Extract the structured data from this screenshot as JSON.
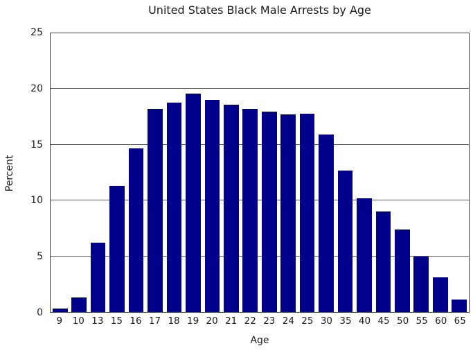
{
  "chart_data": {
    "type": "bar",
    "title": "United States Black Male Arrests by Age",
    "xlabel": "Age",
    "ylabel": "Percent",
    "categories": [
      "9",
      "10",
      "13",
      "15",
      "16",
      "17",
      "18",
      "19",
      "20",
      "21",
      "22",
      "23",
      "24",
      "25",
      "30",
      "35",
      "40",
      "45",
      "50",
      "55",
      "60",
      "65"
    ],
    "values": [
      0.3,
      1.3,
      6.2,
      11.3,
      14.7,
      18.2,
      18.8,
      19.6,
      19.0,
      18.6,
      18.2,
      18.0,
      17.7,
      17.8,
      15.9,
      12.7,
      10.2,
      9.0,
      7.4,
      5.0,
      3.1,
      1.1
    ],
    "ylim": [
      0,
      25
    ],
    "yticks": [
      0,
      5,
      10,
      15,
      20,
      25
    ],
    "grid": true,
    "legend": false,
    "bar_color": "#00008B",
    "grid_color": "#555555",
    "background": "#ffffff"
  }
}
